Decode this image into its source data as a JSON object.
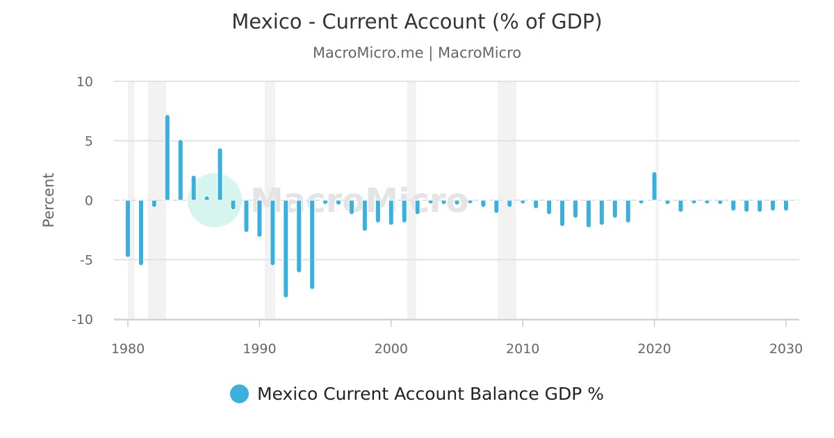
{
  "header": {
    "title": "Mexico - Current Account (% of GDP)",
    "subtitle": "MacroMicro.me | MacroMicro"
  },
  "watermark": "MacroMicro",
  "chart_data": {
    "type": "bar",
    "title": "Mexico - Current Account (% of GDP)",
    "ylabel": "Percent",
    "xlabel": "",
    "ylim": [
      -10,
      10
    ],
    "yticks": [
      "10",
      "5",
      "0",
      "-5",
      "-10"
    ],
    "xticks": [
      "1980",
      "1990",
      "2000",
      "2010",
      "2020",
      "2030"
    ],
    "grid": true,
    "legend_position": "bottom",
    "color": "#3bb0dc",
    "shade_color": "#f2f2f2",
    "shaded_periods": [
      [
        1980.0,
        1980.5
      ],
      [
        1981.5,
        1982.9
      ],
      [
        1990.4,
        1991.2
      ],
      [
        2001.2,
        2001.9
      ],
      [
        2008.1,
        2009.5
      ],
      [
        2020.1,
        2020.3
      ]
    ],
    "series": [
      {
        "name": "Mexico Current Account Balance GDP %",
        "x": [
          1980,
          1981,
          1982,
          1983,
          1984,
          1985,
          1986,
          1987,
          1988,
          1989,
          1990,
          1991,
          1992,
          1993,
          1994,
          1995,
          1996,
          1997,
          1998,
          1999,
          2000,
          2001,
          2002,
          2003,
          2004,
          2005,
          2006,
          2007,
          2008,
          2009,
          2010,
          2011,
          2012,
          2013,
          2014,
          2015,
          2016,
          2017,
          2018,
          2019,
          2020,
          2021,
          2022,
          2023,
          2024,
          2025,
          2026,
          2027,
          2028,
          2029,
          2030
        ],
        "values": [
          -4.8,
          -5.5,
          -0.6,
          7.2,
          5.1,
          2.1,
          0.3,
          4.4,
          -0.8,
          -2.7,
          -3.1,
          -5.5,
          -8.2,
          -6.1,
          -7.5,
          -0.3,
          -0.4,
          -1.2,
          -2.6,
          -1.9,
          -2.1,
          -1.9,
          -1.2,
          -0.2,
          -0.3,
          -0.4,
          -0.1,
          -0.6,
          -1.1,
          -0.6,
          -0.2,
          -0.7,
          -1.2,
          -2.2,
          -1.5,
          -2.3,
          -2.1,
          -1.5,
          -1.9,
          -0.2,
          2.4,
          -0.3,
          -1.0,
          -0.2,
          -0.2,
          -0.3,
          -0.9,
          -1.0,
          -1.0,
          -0.9,
          -0.9
        ]
      }
    ]
  }
}
